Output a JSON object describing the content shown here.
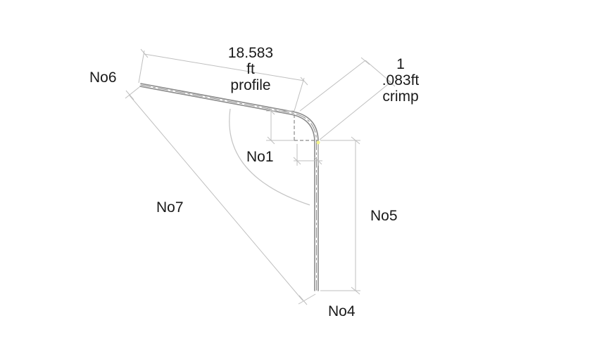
{
  "labels": {
    "profile_length": {
      "value": "18.583",
      "unit": "ft",
      "name": "profile"
    },
    "crimp_length": {
      "value_line1": "1",
      "value_line2": ".083ft",
      "name": "crimp"
    },
    "no1": "No1",
    "no4": "No4",
    "no5": "No5",
    "no6": "No6",
    "no7": "No7"
  },
  "colors": {
    "dimension_line": "#bfbfbf",
    "profile_line": "#7a7a7a",
    "hidden_line": "#8a8a8a",
    "text": "#1a1a1a",
    "highlight_point": "#f4f48a"
  }
}
